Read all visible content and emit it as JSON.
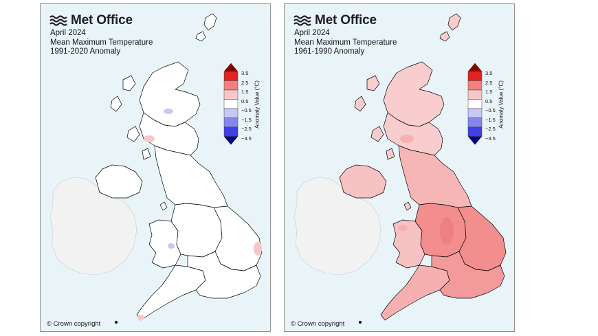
{
  "panels": [
    {
      "logo_text": "Met Office",
      "title_lines": [
        "April 2024",
        "Mean Maximum Temperature",
        "1991-2020 Anomaly"
      ],
      "copyright": "© Crown copyright",
      "uk_fill": "#ffffff",
      "highlight_fill": "#f08080",
      "regions": [
        "scotland-north",
        "scotland-south",
        "northern-ireland",
        "wales",
        "north-england",
        "midlands",
        "east-england",
        "south-west",
        "south-east"
      ],
      "region_fills": {
        "scotland-north": "#ffffff",
        "scotland-south": "#ffffff",
        "northern-ireland": "#ffffff",
        "wales": "#ffffff",
        "north-england": "#ffffff",
        "midlands": "#ffffff",
        "east-england": "#ffffff",
        "south-west": "#ffffff",
        "south-east": "#ffffff"
      }
    },
    {
      "logo_text": "Met Office",
      "title_lines": [
        "April 2024",
        "Mean Maximum Temperature",
        "1961-1990 Anomaly"
      ],
      "copyright": "© Crown copyright",
      "uk_fill": "#f9cdcd",
      "highlight_fill": "#f08080",
      "regions": [
        "scotland-north",
        "scotland-south",
        "northern-ireland",
        "wales",
        "north-england",
        "midlands",
        "east-england",
        "south-west",
        "south-east"
      ],
      "region_fills": {
        "scotland-north": "#f9cdcd",
        "scotland-south": "#f9cdcd",
        "northern-ireland": "#f8c2c2",
        "wales": "#f8c2c2",
        "north-england": "#f6b6b6",
        "midlands": "#f28e8e",
        "east-england": "#f28e8e",
        "south-west": "#f6b0b0",
        "south-east": "#f39a9a"
      }
    }
  ],
  "legend": {
    "title": "Anomaly Value (°C)",
    "ticks": [
      "3.5",
      "2.5",
      "1.5",
      "0.5",
      "−0.5",
      "−1.5",
      "−2.5",
      "−3.5"
    ],
    "colors": [
      "#8b0000",
      "#e32222",
      "#f47f7f",
      "#f9c6c6",
      "#ffffff",
      "#c8c8f4",
      "#8585ee",
      "#3f3fe6",
      "#00008b"
    ]
  }
}
